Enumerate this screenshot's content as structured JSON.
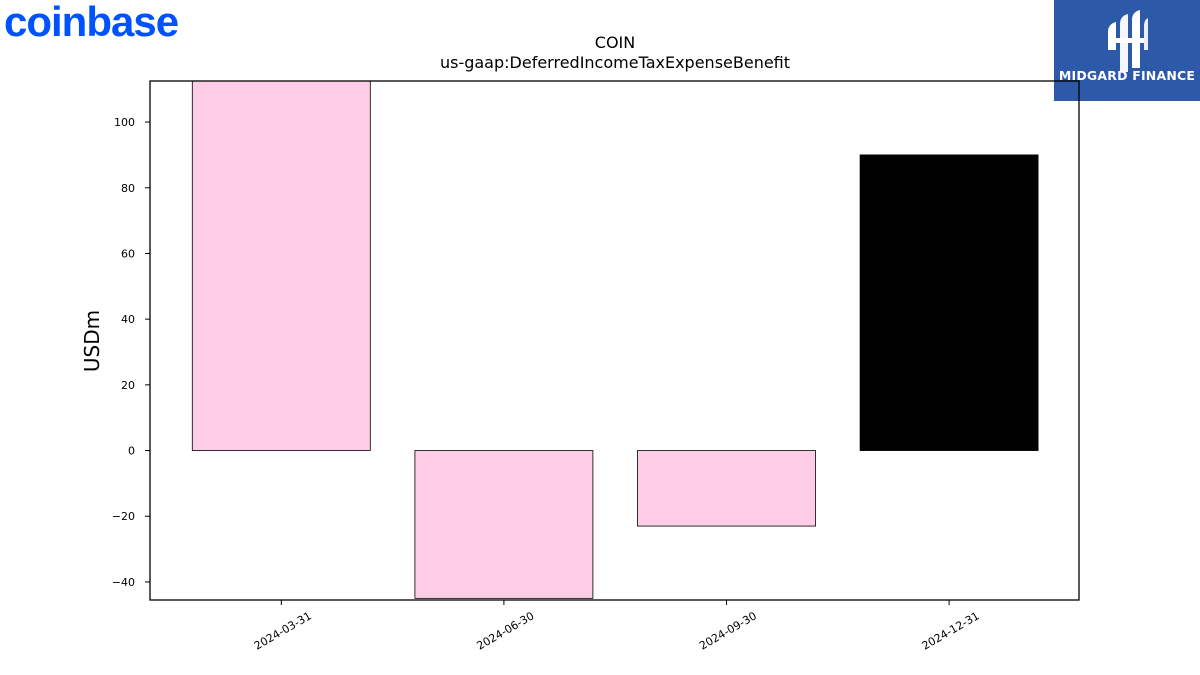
{
  "logo": {
    "text": "coinbase",
    "color": "#0052ff"
  },
  "badge": {
    "text": "MIDGARD FINANCE",
    "bg_color": "#2c5aa9"
  },
  "chart_data": {
    "type": "bar",
    "title": "COIN",
    "subtitle": "us-gaap:DeferredIncomeTaxExpenseBenefit",
    "xlabel": "",
    "ylabel": "USDm",
    "categories": [
      "2024-03-31",
      "2024-06-30",
      "2024-09-30",
      "2024-12-31"
    ],
    "values": [
      113,
      -45,
      -23,
      90
    ],
    "bar_colors": [
      "#fdcce6",
      "#fdcce6",
      "#fdcce6",
      "#000000"
    ],
    "ylim": [
      -45.5,
      112.5
    ],
    "yticks": [
      -40,
      -20,
      0,
      20,
      40,
      60,
      80,
      100
    ],
    "ytick_labels": [
      "−40",
      "−20",
      "0",
      "20",
      "40",
      "60",
      "80",
      "100"
    ],
    "grid": false,
    "legend": "none"
  }
}
